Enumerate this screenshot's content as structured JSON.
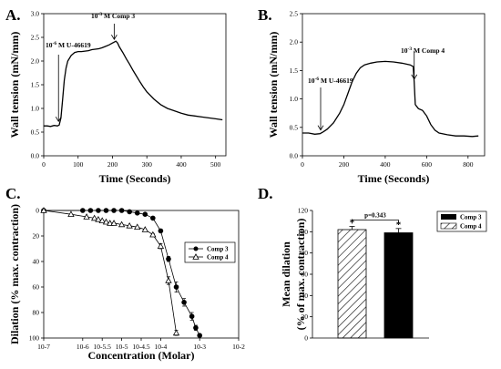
{
  "panels": {
    "a": "A.",
    "b": "B.",
    "c": "C.",
    "d": "D."
  },
  "chart_data": [
    {
      "id": "A",
      "type": "line",
      "xlabel": "Time (Seconds)",
      "ylabel": "Wall tension (mN/mm)",
      "xlim": [
        0,
        530
      ],
      "ylim": [
        0,
        3.0
      ],
      "xticks": [
        0,
        100,
        200,
        300,
        400,
        500
      ],
      "yticks": [
        0.0,
        0.5,
        1.0,
        1.5,
        2.0,
        2.5,
        3.0
      ],
      "x": [
        0,
        10,
        20,
        30,
        40,
        45,
        50,
        55,
        60,
        65,
        70,
        80,
        90,
        100,
        110,
        120,
        130,
        140,
        150,
        160,
        170,
        180,
        190,
        200,
        205,
        210,
        215,
        220,
        230,
        240,
        250,
        260,
        270,
        280,
        290,
        300,
        320,
        340,
        360,
        380,
        400,
        420,
        440,
        460,
        480,
        500,
        520
      ],
      "y": [
        0.63,
        0.63,
        0.62,
        0.64,
        0.63,
        0.65,
        0.8,
        1.2,
        1.6,
        1.85,
        2.0,
        2.12,
        2.18,
        2.2,
        2.2,
        2.21,
        2.22,
        2.24,
        2.25,
        2.26,
        2.28,
        2.31,
        2.34,
        2.38,
        2.4,
        2.42,
        2.38,
        2.3,
        2.18,
        2.05,
        1.93,
        1.8,
        1.68,
        1.56,
        1.45,
        1.35,
        1.2,
        1.08,
        1.0,
        0.95,
        0.9,
        0.86,
        0.84,
        0.82,
        0.8,
        0.78,
        0.76
      ],
      "annotations": [
        {
          "sup": "-6",
          "text": " M U-46619",
          "x": 43
        },
        {
          "sup": "-3",
          "text": " M Comp 3",
          "x": 205
        }
      ]
    },
    {
      "id": "B",
      "type": "line",
      "xlabel": "Time (Seconds)",
      "ylabel": "Wall tension (mN/mm)",
      "xlim": [
        0,
        880
      ],
      "ylim": [
        0,
        2.5
      ],
      "xticks": [
        0,
        200,
        400,
        600,
        800
      ],
      "yticks": [
        0.0,
        0.5,
        1.0,
        1.5,
        2.0,
        2.5
      ],
      "x": [
        0,
        30,
        60,
        85,
        100,
        120,
        150,
        180,
        200,
        220,
        240,
        260,
        280,
        300,
        330,
        360,
        400,
        440,
        480,
        520,
        535,
        540,
        545,
        560,
        580,
        600,
        620,
        640,
        660,
        700,
        740,
        780,
        820,
        850
      ],
      "y": [
        0.4,
        0.4,
        0.38,
        0.39,
        0.42,
        0.47,
        0.58,
        0.75,
        0.9,
        1.1,
        1.3,
        1.45,
        1.55,
        1.6,
        1.63,
        1.65,
        1.66,
        1.65,
        1.63,
        1.6,
        1.57,
        1.3,
        0.9,
        0.83,
        0.8,
        0.7,
        0.55,
        0.45,
        0.4,
        0.37,
        0.35,
        0.35,
        0.34,
        0.35
      ],
      "annotations": [
        {
          "sup": "-6",
          "text": " M U-46619",
          "x": 88
        },
        {
          "sup": "-3",
          "text": " M Comp 4",
          "x": 540
        }
      ]
    },
    {
      "id": "C",
      "type": "line",
      "xscale": "log",
      "xlabel": "Concentration (Molar)",
      "ylabel": "Dilation (% max. contraction)",
      "ylim": [
        0,
        100
      ],
      "yaxis_inverted": true,
      "xtick_labels": [
        "10-7",
        "10-6",
        "10-5.5",
        "10-5",
        "10-4.5",
        "10-4",
        "10-3",
        "10-2"
      ],
      "yticks": [
        0,
        20,
        40,
        60,
        80,
        100
      ],
      "series": [
        {
          "name": "Comp 3",
          "marker": "filled-circle",
          "x": [
            -7,
            -6,
            -5.8,
            -5.6,
            -5.4,
            -5.2,
            -5.0,
            -4.8,
            -4.6,
            -4.4,
            -4.2,
            -4.0,
            -3.8,
            -3.6,
            -3.4,
            -3.2,
            -3.1,
            -3.0
          ],
          "y": [
            0,
            0,
            0,
            0,
            0,
            0,
            0,
            1,
            2,
            3,
            6,
            16,
            38,
            60,
            72,
            83,
            92,
            98
          ],
          "err": [
            0,
            0,
            0,
            0,
            0,
            0,
            0,
            0,
            0,
            0,
            0,
            1,
            2,
            4,
            3,
            3,
            2,
            1
          ]
        },
        {
          "name": "Comp 4",
          "marker": "open-triangle",
          "x": [
            -7,
            -6.3,
            -5.9,
            -5.7,
            -5.6,
            -5.5,
            -5.4,
            -5.3,
            -5.2,
            -5.0,
            -4.8,
            -4.6,
            -4.4,
            -4.2,
            -4.0,
            -3.8,
            -3.6
          ],
          "y": [
            0,
            3,
            5,
            6,
            7,
            8,
            9,
            10,
            10,
            11,
            12,
            13,
            15,
            19,
            28,
            55,
            96
          ],
          "err": [
            0,
            0,
            0,
            0,
            0,
            0,
            0,
            0,
            0,
            0,
            0,
            0,
            0,
            1,
            2,
            3,
            2
          ]
        }
      ]
    },
    {
      "id": "D",
      "type": "bar",
      "xlabel": "",
      "ylabel": "Mean dilation (% of max. contraction)",
      "ylim": [
        0,
        120
      ],
      "yticks": [
        0,
        20,
        40,
        60,
        80,
        100,
        120
      ],
      "categories": [
        "Comp 4",
        "Comp 3"
      ],
      "values": [
        102,
        99
      ],
      "errors": [
        3,
        4
      ],
      "patterns": [
        "hatched",
        "solid-black"
      ],
      "significance_marks": [
        "*",
        "*"
      ],
      "comparison_label": "p=0.343",
      "legend": [
        {
          "name": "Comp 3",
          "pattern": "solid-black"
        },
        {
          "name": "Comp 4",
          "pattern": "hatched"
        }
      ]
    }
  ]
}
